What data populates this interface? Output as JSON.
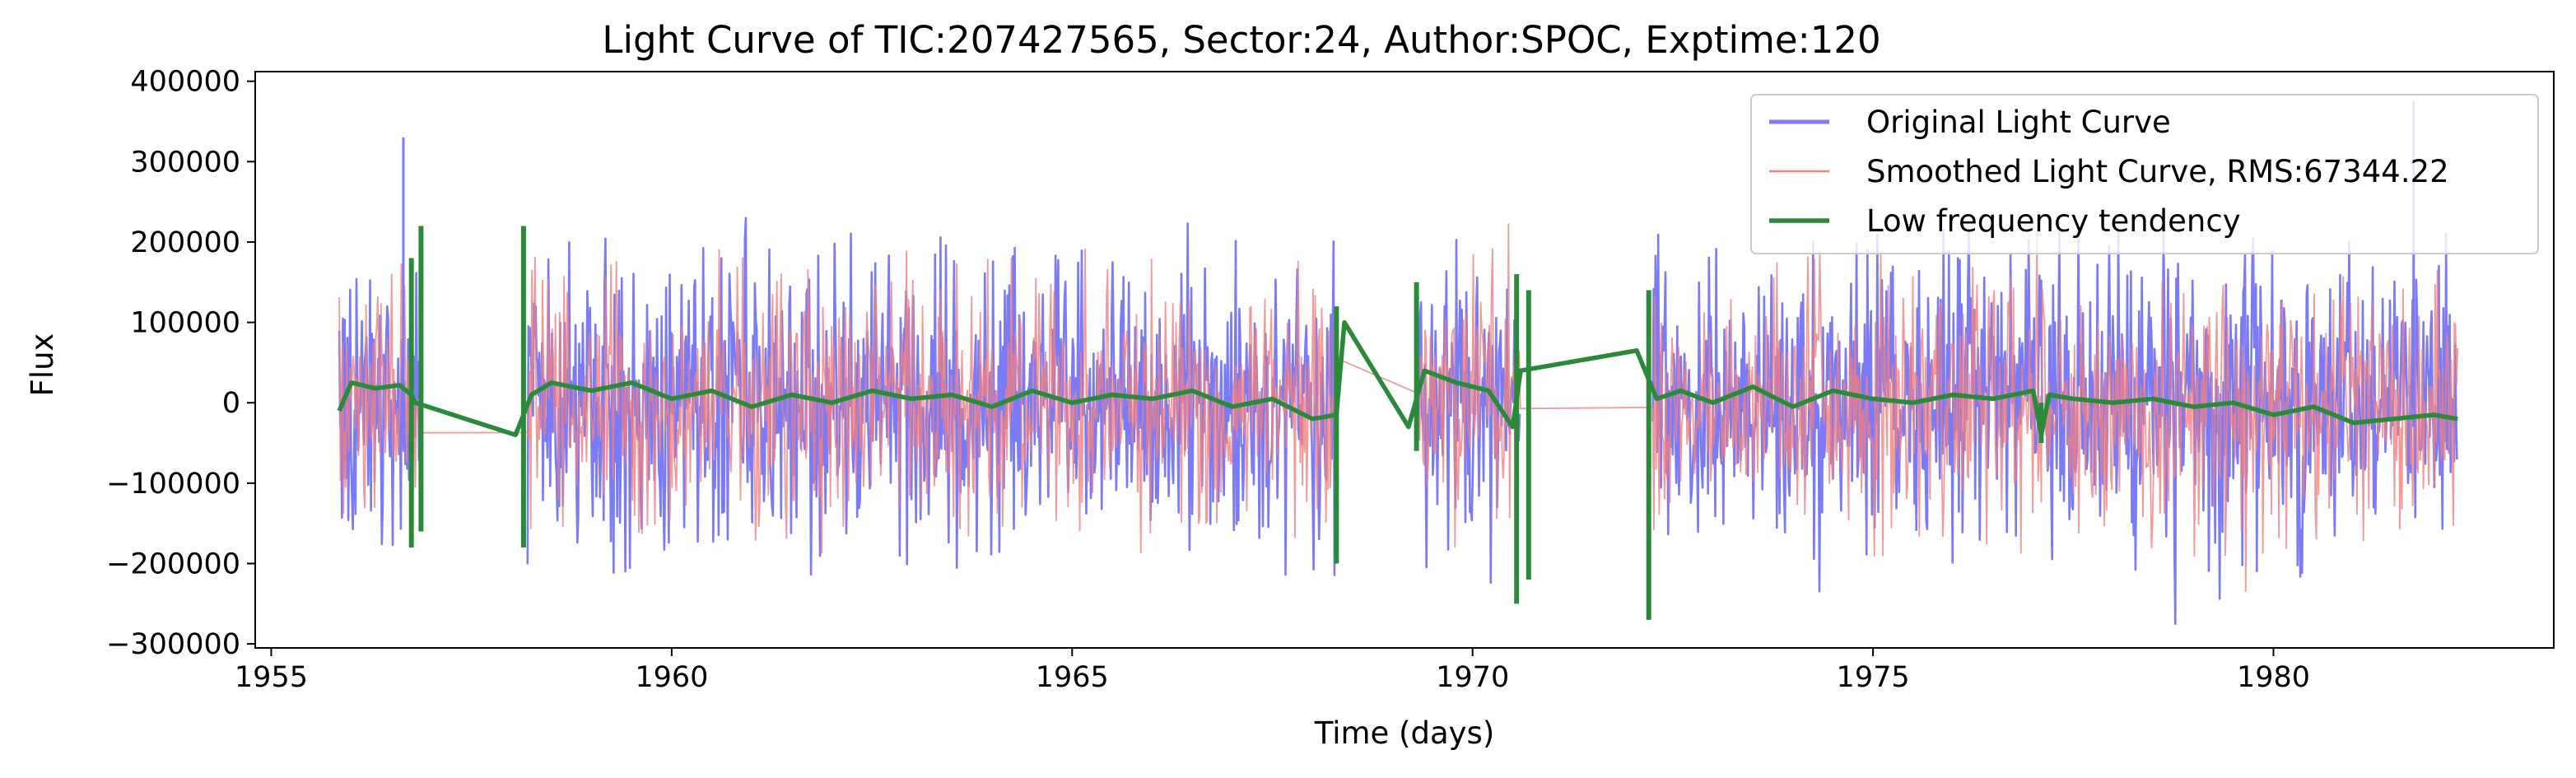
{
  "chart_data": {
    "type": "line",
    "title": "Light Curve of TIC:207427565, Sector:24, Author:SPOC, Exptime:120",
    "xlabel": "Time (days)",
    "ylabel": "Flux",
    "xlim": [
      1954.8,
      1983.5
    ],
    "ylim": [
      -305000,
      412000
    ],
    "xticks": [
      1955,
      1960,
      1965,
      1970,
      1975,
      1980
    ],
    "xtick_labels": [
      "1955",
      "1960",
      "1965",
      "1970",
      "1975",
      "1980"
    ],
    "yticks": [
      -300000,
      -200000,
      -100000,
      0,
      100000,
      200000,
      300000,
      400000
    ],
    "ytick_labels": [
      "−300000",
      "−200000",
      "−100000",
      "0",
      "100000",
      "200000",
      "300000",
      "400000"
    ],
    "grid": false,
    "legend_position": "upper right",
    "segments": [
      [
        1955.85,
        1956.85
      ],
      [
        1958.2,
        1968.3
      ],
      [
        1969.3,
        1970.6
      ],
      [
        1972.25,
        1982.3
      ]
    ],
    "series": [
      {
        "name": "Original Light Curve",
        "color": "#7b7bf7",
        "style": "noisy-flux",
        "amplitude": 135000,
        "min": -240000,
        "max": 375000
      },
      {
        "name": "Smoothed Light Curve, RMS:67344.22",
        "color": "#f08080",
        "style": "noisy-flux",
        "rms": 67344.22,
        "amplitude": 120000
      },
      {
        "name": "Low frequency tendency",
        "color": "#2a8a3a",
        "style": "trend",
        "points": [
          [
            1955.85,
            -10000
          ],
          [
            1956.0,
            25000
          ],
          [
            1956.3,
            18000
          ],
          [
            1956.6,
            22000
          ],
          [
            1956.75,
            10000
          ],
          [
            1956.8,
            0
          ],
          [
            1958.05,
            -40000
          ],
          [
            1958.25,
            10000
          ],
          [
            1958.5,
            25000
          ],
          [
            1959.0,
            15000
          ],
          [
            1959.5,
            25000
          ],
          [
            1960.0,
            5000
          ],
          [
            1960.5,
            15000
          ],
          [
            1961.0,
            -5000
          ],
          [
            1961.5,
            10000
          ],
          [
            1962.0,
            0
          ],
          [
            1962.5,
            15000
          ],
          [
            1963.0,
            5000
          ],
          [
            1963.5,
            10000
          ],
          [
            1964.0,
            -5000
          ],
          [
            1964.5,
            15000
          ],
          [
            1965.0,
            0
          ],
          [
            1965.5,
            10000
          ],
          [
            1966.0,
            5000
          ],
          [
            1966.5,
            15000
          ],
          [
            1967.0,
            -5000
          ],
          [
            1967.5,
            5000
          ],
          [
            1968.0,
            -20000
          ],
          [
            1968.3,
            -15000
          ],
          [
            1968.4,
            100000
          ],
          [
            1969.2,
            -30000
          ],
          [
            1969.4,
            40000
          ],
          [
            1969.8,
            25000
          ],
          [
            1970.2,
            15000
          ],
          [
            1970.5,
            -30000
          ],
          [
            1970.6,
            40000
          ],
          [
            1972.05,
            65000
          ],
          [
            1972.3,
            5000
          ],
          [
            1972.6,
            15000
          ],
          [
            1973.0,
            0
          ],
          [
            1973.5,
            20000
          ],
          [
            1974.0,
            -5000
          ],
          [
            1974.5,
            15000
          ],
          [
            1975.0,
            5000
          ],
          [
            1975.5,
            0
          ],
          [
            1976.0,
            10000
          ],
          [
            1976.5,
            5000
          ],
          [
            1977.0,
            15000
          ],
          [
            1977.1,
            -40000
          ],
          [
            1977.2,
            10000
          ],
          [
            1977.5,
            5000
          ],
          [
            1978.0,
            0
          ],
          [
            1978.5,
            5000
          ],
          [
            1979.0,
            -5000
          ],
          [
            1979.5,
            0
          ],
          [
            1980.0,
            -15000
          ],
          [
            1980.5,
            -5000
          ],
          [
            1981.0,
            -25000
          ],
          [
            1981.5,
            -20000
          ],
          [
            1982.0,
            -15000
          ],
          [
            1982.3,
            -20000
          ]
        ],
        "spikes": [
          [
            1956.75,
            -180000,
            180000
          ],
          [
            1956.87,
            -160000,
            220000
          ],
          [
            1958.15,
            -180000,
            220000
          ],
          [
            1968.3,
            -200000,
            120000
          ],
          [
            1969.3,
            -60000,
            150000
          ],
          [
            1970.55,
            -250000,
            160000
          ],
          [
            1970.7,
            -220000,
            140000
          ],
          [
            1972.2,
            -270000,
            140000
          ],
          [
            1977.1,
            -50000,
            0
          ]
        ]
      }
    ]
  }
}
